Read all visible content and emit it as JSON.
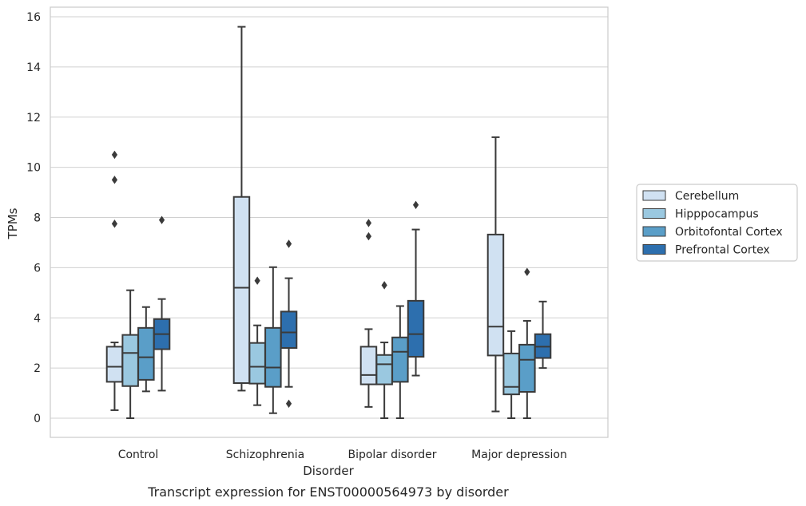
{
  "caption": "Transcript expression for ENST00000564973 by disorder",
  "chart_data": {
    "type": "box",
    "title": "",
    "xlabel": "Disorder",
    "ylabel": "TPMs",
    "ylim": [
      -0.75,
      16.35
    ],
    "yticks": [
      0,
      2,
      4,
      6,
      8,
      10,
      12,
      14,
      16
    ],
    "grid": true,
    "legend_position": "right",
    "categories": [
      "Control",
      "Schizophrenia",
      "Bipolar disorder",
      "Major depression"
    ],
    "series": [
      {
        "name": "Cerebellum",
        "color": "#d0e1f2",
        "boxes": [
          {
            "whisker_low": 0.32,
            "q1": 1.45,
            "median": 2.05,
            "q3": 2.85,
            "whisker_high": 3.02,
            "outliers": [
              7.75,
              9.5,
              10.5
            ]
          },
          {
            "whisker_low": 1.1,
            "q1": 1.4,
            "median": 5.2,
            "q3": 8.82,
            "whisker_high": 15.6,
            "outliers": []
          },
          {
            "whisker_low": 0.45,
            "q1": 1.35,
            "median": 1.72,
            "q3": 2.85,
            "whisker_high": 3.55,
            "outliers": [
              7.25,
              7.78
            ]
          },
          {
            "whisker_low": 0.27,
            "q1": 2.5,
            "median": 3.65,
            "q3": 7.32,
            "whisker_high": 11.2,
            "outliers": []
          }
        ]
      },
      {
        "name": "Hipppocampus",
        "color": "#9ac8e0",
        "boxes": [
          {
            "whisker_low": 0.0,
            "q1": 1.28,
            "median": 2.6,
            "q3": 3.32,
            "whisker_high": 5.1,
            "outliers": []
          },
          {
            "whisker_low": 0.52,
            "q1": 1.38,
            "median": 2.05,
            "q3": 3.0,
            "whisker_high": 3.7,
            "outliers": [
              5.48
            ]
          },
          {
            "whisker_low": 0.0,
            "q1": 1.35,
            "median": 2.15,
            "q3": 2.52,
            "whisker_high": 3.02,
            "outliers": [
              5.3
            ]
          },
          {
            "whisker_low": 0.0,
            "q1": 0.95,
            "median": 1.25,
            "q3": 2.58,
            "whisker_high": 3.47,
            "outliers": []
          }
        ]
      },
      {
        "name": "Orbitofontal Cortex",
        "color": "#5a9ec8",
        "boxes": [
          {
            "whisker_low": 1.07,
            "q1": 1.53,
            "median": 2.43,
            "q3": 3.6,
            "whisker_high": 4.43,
            "outliers": []
          },
          {
            "whisker_low": 0.2,
            "q1": 1.25,
            "median": 2.02,
            "q3": 3.6,
            "whisker_high": 6.02,
            "outliers": []
          },
          {
            "whisker_low": 0.0,
            "q1": 1.45,
            "median": 2.65,
            "q3": 3.22,
            "whisker_high": 4.47,
            "outliers": []
          },
          {
            "whisker_low": 0.0,
            "q1": 1.05,
            "median": 2.33,
            "q3": 2.93,
            "whisker_high": 3.88,
            "outliers": [
              5.83
            ]
          }
        ]
      },
      {
        "name": "Prefrontal Cortex",
        "color": "#2d6fae",
        "boxes": [
          {
            "whisker_low": 1.1,
            "q1": 2.75,
            "median": 3.35,
            "q3": 3.95,
            "whisker_high": 4.75,
            "outliers": [
              7.9
            ]
          },
          {
            "whisker_low": 1.25,
            "q1": 2.8,
            "median": 3.42,
            "q3": 4.25,
            "whisker_high": 5.58,
            "outliers": [
              0.58,
              6.95
            ]
          },
          {
            "whisker_low": 1.7,
            "q1": 2.45,
            "median": 3.35,
            "q3": 4.68,
            "whisker_high": 7.52,
            "outliers": [
              8.5
            ]
          },
          {
            "whisker_low": 2.0,
            "q1": 2.4,
            "median": 2.85,
            "q3": 3.35,
            "whisker_high": 4.65,
            "outliers": []
          }
        ]
      }
    ]
  }
}
